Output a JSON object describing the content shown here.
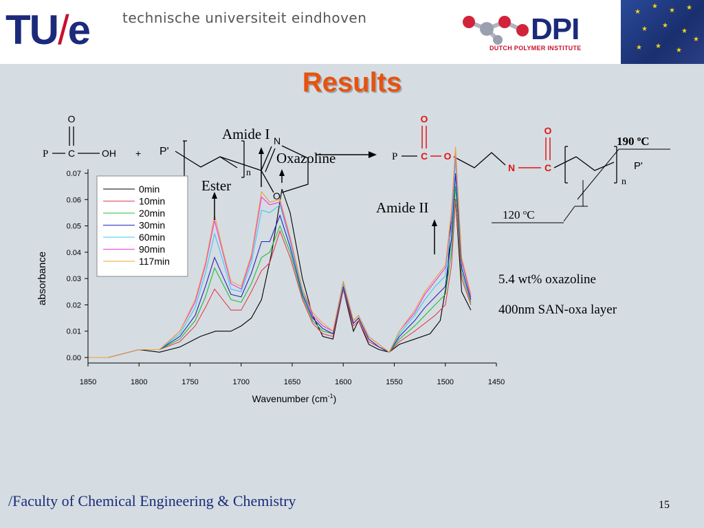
{
  "header": {
    "logo_tu": "TU",
    "logo_slash": "/",
    "logo_e": "e",
    "university_name": "technische universiteit eindhoven",
    "dpi_logo": "DPI",
    "dpi_sub": "DUTCH POLYMER INSTITUTE"
  },
  "title": "Results",
  "annotations": {
    "amide1": "Amide I",
    "oxazoline": "Oxazoline",
    "ester": "Ester",
    "amide2": "Amide II"
  },
  "reaction": {
    "reactant_p": "P",
    "reactant_c": "C",
    "reactant_oh": "OH",
    "reactant_o": "O",
    "plus": "+",
    "polymer_p": "P'",
    "sub_n": "n",
    "ring_n": "N",
    "ring_o": "O",
    "product_p": "P",
    "product_c": "C",
    "product_o": "O",
    "product_n": "N",
    "product_c2": "C",
    "product_o_top1": "O",
    "product_o_top2": "O",
    "product_pp": "P'",
    "product_sub_n": "n",
    "temp1_value": "190 ",
    "temp1_sup": "o",
    "temp1_unit": "C",
    "temp2_value": "120 ",
    "temp2_sup": "o",
    "temp2_unit": "C"
  },
  "notes": {
    "line1": "5.4 wt% oxazoline",
    "line2": "400nm SAN-oxa layer"
  },
  "footer": "/Faculty of Chemical Engineering & Chemistry",
  "page_number": "15",
  "chart_data": {
    "type": "line",
    "xlabel": "Wavenumber (cm",
    "xlabel_sup": "-1",
    "xlabel_end": ")",
    "ylabel": "absorbance",
    "xlim": [
      1850,
      1450
    ],
    "ylim": [
      0.0,
      0.07
    ],
    "xticks": [
      "1850",
      "1800",
      "1750",
      "1700",
      "1650",
      "1600",
      "1550",
      "1500",
      "1450"
    ],
    "yticks": [
      "0.00",
      "0.01",
      "0.02",
      "0.03",
      "0.04",
      "0.05",
      "0.06",
      "0.07"
    ],
    "legend_placement": "top-left",
    "series": [
      {
        "name": "0min",
        "color": "#000000",
        "x": [
          1850,
          1830,
          1800,
          1780,
          1760,
          1740,
          1725,
          1710,
          1700,
          1690,
          1680,
          1670,
          1660,
          1652,
          1640,
          1630,
          1620,
          1610,
          1600,
          1590,
          1585,
          1575,
          1565,
          1555,
          1545,
          1530,
          1515,
          1505,
          1498,
          1493,
          1490,
          1484,
          1475
        ],
        "y": [
          0.0,
          0.0,
          0.003,
          0.002,
          0.004,
          0.008,
          0.01,
          0.01,
          0.012,
          0.015,
          0.022,
          0.04,
          0.064,
          0.055,
          0.03,
          0.016,
          0.008,
          0.007,
          0.026,
          0.01,
          0.014,
          0.005,
          0.003,
          0.002,
          0.005,
          0.007,
          0.009,
          0.014,
          0.03,
          0.06,
          0.06,
          0.025,
          0.018
        ]
      },
      {
        "name": "10min",
        "color": "#e8384f",
        "x": [
          1850,
          1830,
          1800,
          1780,
          1760,
          1745,
          1735,
          1726,
          1718,
          1710,
          1700,
          1690,
          1680,
          1672,
          1662,
          1652,
          1640,
          1630,
          1620,
          1610,
          1600,
          1590,
          1585,
          1575,
          1565,
          1555,
          1545,
          1530,
          1520,
          1510,
          1500,
          1494,
          1490,
          1484,
          1475
        ],
        "y": [
          0.0,
          0.0,
          0.003,
          0.003,
          0.006,
          0.012,
          0.019,
          0.026,
          0.022,
          0.018,
          0.018,
          0.025,
          0.033,
          0.036,
          0.048,
          0.038,
          0.022,
          0.013,
          0.009,
          0.008,
          0.026,
          0.012,
          0.014,
          0.006,
          0.004,
          0.002,
          0.006,
          0.01,
          0.013,
          0.016,
          0.02,
          0.035,
          0.06,
          0.03,
          0.02
        ]
      },
      {
        "name": "20min",
        "color": "#22bb33",
        "x": [
          1850,
          1830,
          1800,
          1780,
          1760,
          1745,
          1735,
          1726,
          1718,
          1710,
          1700,
          1690,
          1680,
          1672,
          1662,
          1652,
          1640,
          1630,
          1620,
          1610,
          1600,
          1590,
          1585,
          1575,
          1565,
          1555,
          1545,
          1530,
          1520,
          1510,
          1500,
          1494,
          1490,
          1484,
          1475
        ],
        "y": [
          0.0,
          0.0,
          0.003,
          0.003,
          0.007,
          0.014,
          0.023,
          0.034,
          0.028,
          0.022,
          0.021,
          0.028,
          0.038,
          0.04,
          0.05,
          0.04,
          0.023,
          0.014,
          0.01,
          0.009,
          0.027,
          0.013,
          0.015,
          0.007,
          0.004,
          0.002,
          0.007,
          0.012,
          0.016,
          0.02,
          0.024,
          0.04,
          0.065,
          0.032,
          0.021
        ]
      },
      {
        "name": "30min",
        "color": "#2222bb",
        "x": [
          1850,
          1830,
          1800,
          1780,
          1760,
          1745,
          1735,
          1726,
          1718,
          1710,
          1700,
          1690,
          1680,
          1672,
          1662,
          1652,
          1640,
          1630,
          1620,
          1610,
          1600,
          1590,
          1585,
          1575,
          1565,
          1555,
          1545,
          1530,
          1520,
          1510,
          1500,
          1494,
          1490,
          1484,
          1475
        ],
        "y": [
          0.0,
          0.0,
          0.003,
          0.003,
          0.008,
          0.016,
          0.027,
          0.038,
          0.031,
          0.024,
          0.023,
          0.032,
          0.044,
          0.044,
          0.054,
          0.042,
          0.024,
          0.015,
          0.011,
          0.009,
          0.027,
          0.013,
          0.015,
          0.007,
          0.004,
          0.002,
          0.008,
          0.014,
          0.019,
          0.023,
          0.027,
          0.045,
          0.07,
          0.034,
          0.022
        ]
      },
      {
        "name": "60min",
        "color": "#33ccee",
        "x": [
          1850,
          1830,
          1800,
          1780,
          1760,
          1745,
          1735,
          1726,
          1718,
          1710,
          1700,
          1690,
          1680,
          1672,
          1662,
          1652,
          1640,
          1630,
          1620,
          1610,
          1600,
          1590,
          1585,
          1575,
          1565,
          1555,
          1545,
          1530,
          1520,
          1510,
          1500,
          1494,
          1490,
          1484,
          1475
        ],
        "y": [
          0.0,
          0.0,
          0.003,
          0.003,
          0.009,
          0.019,
          0.032,
          0.047,
          0.037,
          0.026,
          0.025,
          0.036,
          0.056,
          0.055,
          0.058,
          0.044,
          0.025,
          0.016,
          0.012,
          0.01,
          0.028,
          0.014,
          0.016,
          0.008,
          0.005,
          0.002,
          0.009,
          0.016,
          0.022,
          0.027,
          0.031,
          0.05,
          0.075,
          0.036,
          0.023
        ]
      },
      {
        "name": "90min",
        "color": "#ee33ee",
        "x": [
          1850,
          1830,
          1800,
          1780,
          1760,
          1745,
          1735,
          1726,
          1718,
          1710,
          1700,
          1690,
          1680,
          1672,
          1662,
          1652,
          1640,
          1630,
          1620,
          1610,
          1600,
          1590,
          1585,
          1575,
          1565,
          1555,
          1545,
          1530,
          1520,
          1510,
          1500,
          1494,
          1490,
          1484,
          1475
        ],
        "y": [
          0.0,
          0.0,
          0.003,
          0.003,
          0.01,
          0.021,
          0.035,
          0.052,
          0.04,
          0.028,
          0.026,
          0.038,
          0.061,
          0.058,
          0.059,
          0.045,
          0.026,
          0.016,
          0.012,
          0.01,
          0.029,
          0.014,
          0.016,
          0.008,
          0.005,
          0.002,
          0.01,
          0.017,
          0.024,
          0.029,
          0.034,
          0.054,
          0.078,
          0.037,
          0.023
        ]
      },
      {
        "name": "117min",
        "color": "#f0a030",
        "x": [
          1850,
          1830,
          1800,
          1780,
          1760,
          1745,
          1735,
          1726,
          1718,
          1710,
          1700,
          1690,
          1680,
          1672,
          1662,
          1652,
          1640,
          1630,
          1620,
          1610,
          1600,
          1590,
          1585,
          1575,
          1565,
          1555,
          1545,
          1530,
          1520,
          1510,
          1500,
          1494,
          1490,
          1484,
          1475
        ],
        "y": [
          0.0,
          0.0,
          0.003,
          0.003,
          0.01,
          0.022,
          0.036,
          0.054,
          0.041,
          0.029,
          0.027,
          0.039,
          0.063,
          0.059,
          0.06,
          0.046,
          0.026,
          0.017,
          0.013,
          0.01,
          0.029,
          0.014,
          0.016,
          0.008,
          0.005,
          0.002,
          0.01,
          0.018,
          0.025,
          0.03,
          0.035,
          0.056,
          0.08,
          0.038,
          0.024
        ]
      }
    ]
  }
}
